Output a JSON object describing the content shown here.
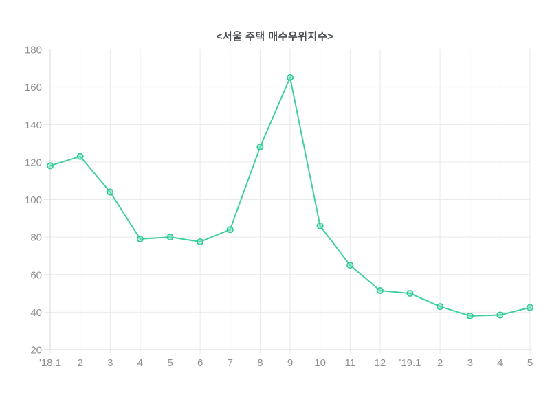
{
  "chart_data": {
    "type": "line",
    "title": "<서울 주택 매수우위지수>",
    "series_name": "서울 주택 매수우위지수",
    "categories": [
      "'18.1",
      "2",
      "3",
      "4",
      "5",
      "6",
      "7",
      "8",
      "9",
      "10",
      "11",
      "12",
      "'19.1",
      "2",
      "3",
      "4",
      "5"
    ],
    "values": [
      118,
      123,
      104,
      79,
      80,
      77.5,
      84,
      128,
      165,
      86,
      65,
      51.5,
      50,
      43,
      38,
      38.5,
      42.5
    ],
    "xlabel": "",
    "ylabel": "",
    "ylim": [
      20,
      180
    ],
    "yticks": [
      20,
      40,
      60,
      80,
      100,
      120,
      140,
      160,
      180
    ],
    "ytick_step": 20,
    "grid": true,
    "legend": "none",
    "colors": {
      "line": "#40d0a2",
      "marker_fill": "rgba(110, 224, 187, 0.55)",
      "marker_stroke": "#2fc795",
      "gridline": "#e9e9e9",
      "axis": "#d7d7d7",
      "tick_label": "#8e8e8e",
      "title": "#4a4f54",
      "background": "#ffffff"
    }
  }
}
